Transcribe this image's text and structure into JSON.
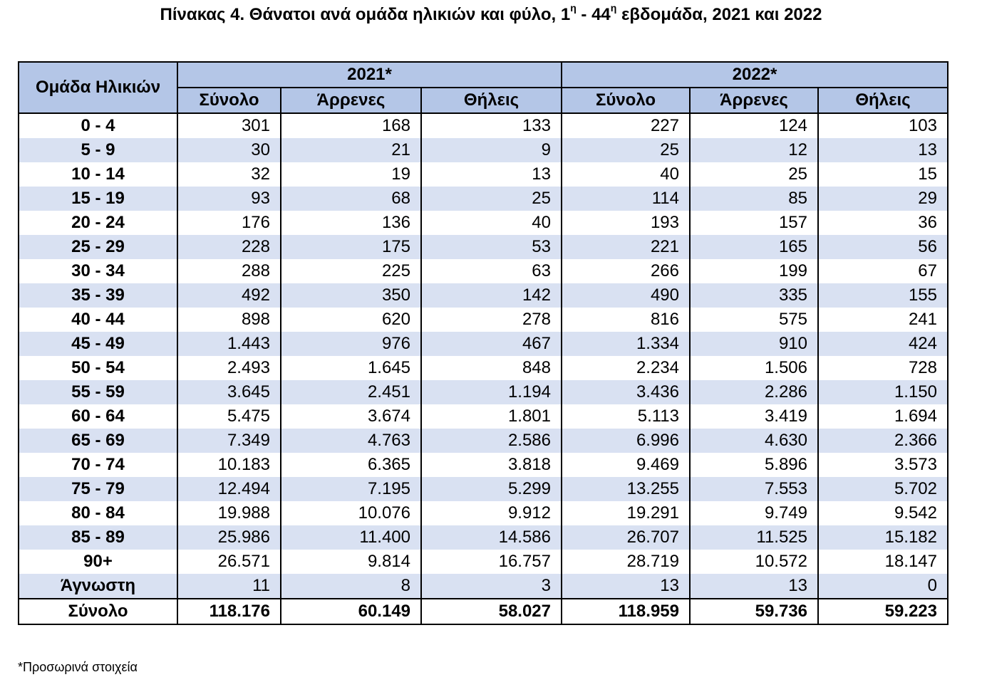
{
  "title": {
    "main": "Πίνακας 4. Θάνατοι ανά ομάδα ηλικιών και φύλο, 1",
    "sup1": "η",
    "mid": " - 44",
    "sup2": "η",
    "tail": " εβδομάδα, 2021 και 2022"
  },
  "header": {
    "age_group": "Ομάδα Ηλικιών",
    "year1": "2021*",
    "year2": "2022*",
    "total": "Σύνολο",
    "male": "Άρρενες",
    "female": "Θήλεις"
  },
  "rows": [
    {
      "age": "0 - 4",
      "v": [
        "301",
        "168",
        "133",
        "227",
        "124",
        "103"
      ]
    },
    {
      "age": "5 - 9",
      "v": [
        "30",
        "21",
        "9",
        "25",
        "12",
        "13"
      ]
    },
    {
      "age": "10 - 14",
      "v": [
        "32",
        "19",
        "13",
        "40",
        "25",
        "15"
      ]
    },
    {
      "age": "15 - 19",
      "v": [
        "93",
        "68",
        "25",
        "114",
        "85",
        "29"
      ]
    },
    {
      "age": "20 - 24",
      "v": [
        "176",
        "136",
        "40",
        "193",
        "157",
        "36"
      ]
    },
    {
      "age": "25 - 29",
      "v": [
        "228",
        "175",
        "53",
        "221",
        "165",
        "56"
      ]
    },
    {
      "age": "30 - 34",
      "v": [
        "288",
        "225",
        "63",
        "266",
        "199",
        "67"
      ]
    },
    {
      "age": "35 - 39",
      "v": [
        "492",
        "350",
        "142",
        "490",
        "335",
        "155"
      ]
    },
    {
      "age": "40 - 44",
      "v": [
        "898",
        "620",
        "278",
        "816",
        "575",
        "241"
      ]
    },
    {
      "age": "45 - 49",
      "v": [
        "1.443",
        "976",
        "467",
        "1.334",
        "910",
        "424"
      ]
    },
    {
      "age": "50 - 54",
      "v": [
        "2.493",
        "1.645",
        "848",
        "2.234",
        "1.506",
        "728"
      ]
    },
    {
      "age": "55 - 59",
      "v": [
        "3.645",
        "2.451",
        "1.194",
        "3.436",
        "2.286",
        "1.150"
      ]
    },
    {
      "age": "60 - 64",
      "v": [
        "5.475",
        "3.674",
        "1.801",
        "5.113",
        "3.419",
        "1.694"
      ]
    },
    {
      "age": "65 - 69",
      "v": [
        "7.349",
        "4.763",
        "2.586",
        "6.996",
        "4.630",
        "2.366"
      ]
    },
    {
      "age": "70 - 74",
      "v": [
        "10.183",
        "6.365",
        "3.818",
        "9.469",
        "5.896",
        "3.573"
      ]
    },
    {
      "age": "75 - 79",
      "v": [
        "12.494",
        "7.195",
        "5.299",
        "13.255",
        "7.553",
        "5.702"
      ]
    },
    {
      "age": "80 - 84",
      "v": [
        "19.988",
        "10.076",
        "9.912",
        "19.291",
        "9.749",
        "9.542"
      ]
    },
    {
      "age": "85 - 89",
      "v": [
        "25.986",
        "11.400",
        "14.586",
        "26.707",
        "11.525",
        "15.182"
      ]
    },
    {
      "age": "90+",
      "v": [
        "26.571",
        "9.814",
        "16.757",
        "28.719",
        "10.572",
        "18.147"
      ]
    },
    {
      "age": "Άγνωστη",
      "v": [
        "11",
        "8",
        "3",
        "13",
        "13",
        "0"
      ]
    }
  ],
  "total_row": {
    "age": "Σύνολο",
    "v": [
      "118.176",
      "60.149",
      "58.027",
      "118.959",
      "59.736",
      "59.223"
    ]
  },
  "footnote": "*Προσωρινά στοιχεία"
}
